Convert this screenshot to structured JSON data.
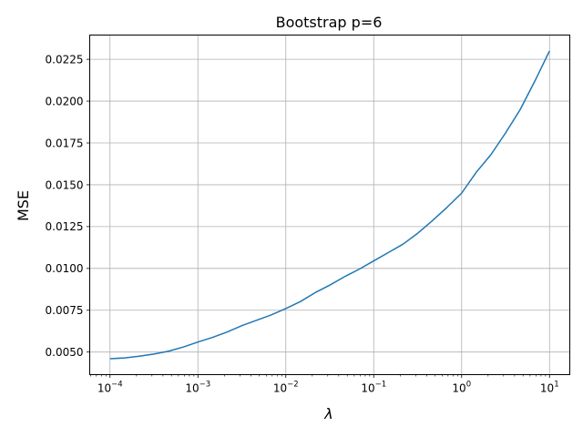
{
  "chart_data": {
    "type": "line",
    "title": "Bootstrap p=6",
    "xlabel": "λ",
    "ylabel": "MSE",
    "xscale": "log",
    "xlim": [
      5.88e-05,
      17.0
    ],
    "ylim": [
      0.00365,
      0.02395
    ],
    "grid": true,
    "x_ticks": [
      {
        "value": 0.0001,
        "base": "10",
        "exp": "−4"
      },
      {
        "value": 0.001,
        "base": "10",
        "exp": "−3"
      },
      {
        "value": 0.01,
        "base": "10",
        "exp": "−2"
      },
      {
        "value": 0.1,
        "base": "10",
        "exp": "−1"
      },
      {
        "value": 1,
        "base": "10",
        "exp": "0"
      },
      {
        "value": 10,
        "base": "10",
        "exp": "1"
      }
    ],
    "y_ticks": [
      {
        "value": 0.005,
        "label": "0.0050"
      },
      {
        "value": 0.0075,
        "label": "0.0075"
      },
      {
        "value": 0.01,
        "label": "0.0100"
      },
      {
        "value": 0.0125,
        "label": "0.0125"
      },
      {
        "value": 0.015,
        "label": "0.0150"
      },
      {
        "value": 0.0175,
        "label": "0.0175"
      },
      {
        "value": 0.02,
        "label": "0.0200"
      },
      {
        "value": 0.0225,
        "label": "0.0225"
      }
    ],
    "series": [
      {
        "color": "#1f77b4",
        "x": [
          0.0001,
          0.0001468,
          0.0002154,
          0.0003162,
          0.0004642,
          0.0006813,
          0.001,
          0.001468,
          0.002154,
          0.003162,
          0.004642,
          0.006813,
          0.01,
          0.01468,
          0.02154,
          0.03162,
          0.04642,
          0.06813,
          0.1,
          0.1468,
          0.2154,
          0.3162,
          0.4642,
          0.6813,
          1.0,
          1.468,
          2.154,
          3.162,
          4.642,
          6.813,
          10.0
        ],
        "y": [
          0.0046,
          0.00465,
          0.00475,
          0.00488,
          0.00505,
          0.0053,
          0.0056,
          0.00588,
          0.0062,
          0.00658,
          0.0069,
          0.00722,
          0.0076,
          0.00802,
          0.00855,
          0.009,
          0.0095,
          0.00995,
          0.01045,
          0.01095,
          0.01145,
          0.0121,
          0.01285,
          0.01365,
          0.0145,
          0.01575,
          0.0168,
          0.0181,
          0.0195,
          0.0212,
          0.023
        ]
      }
    ]
  }
}
